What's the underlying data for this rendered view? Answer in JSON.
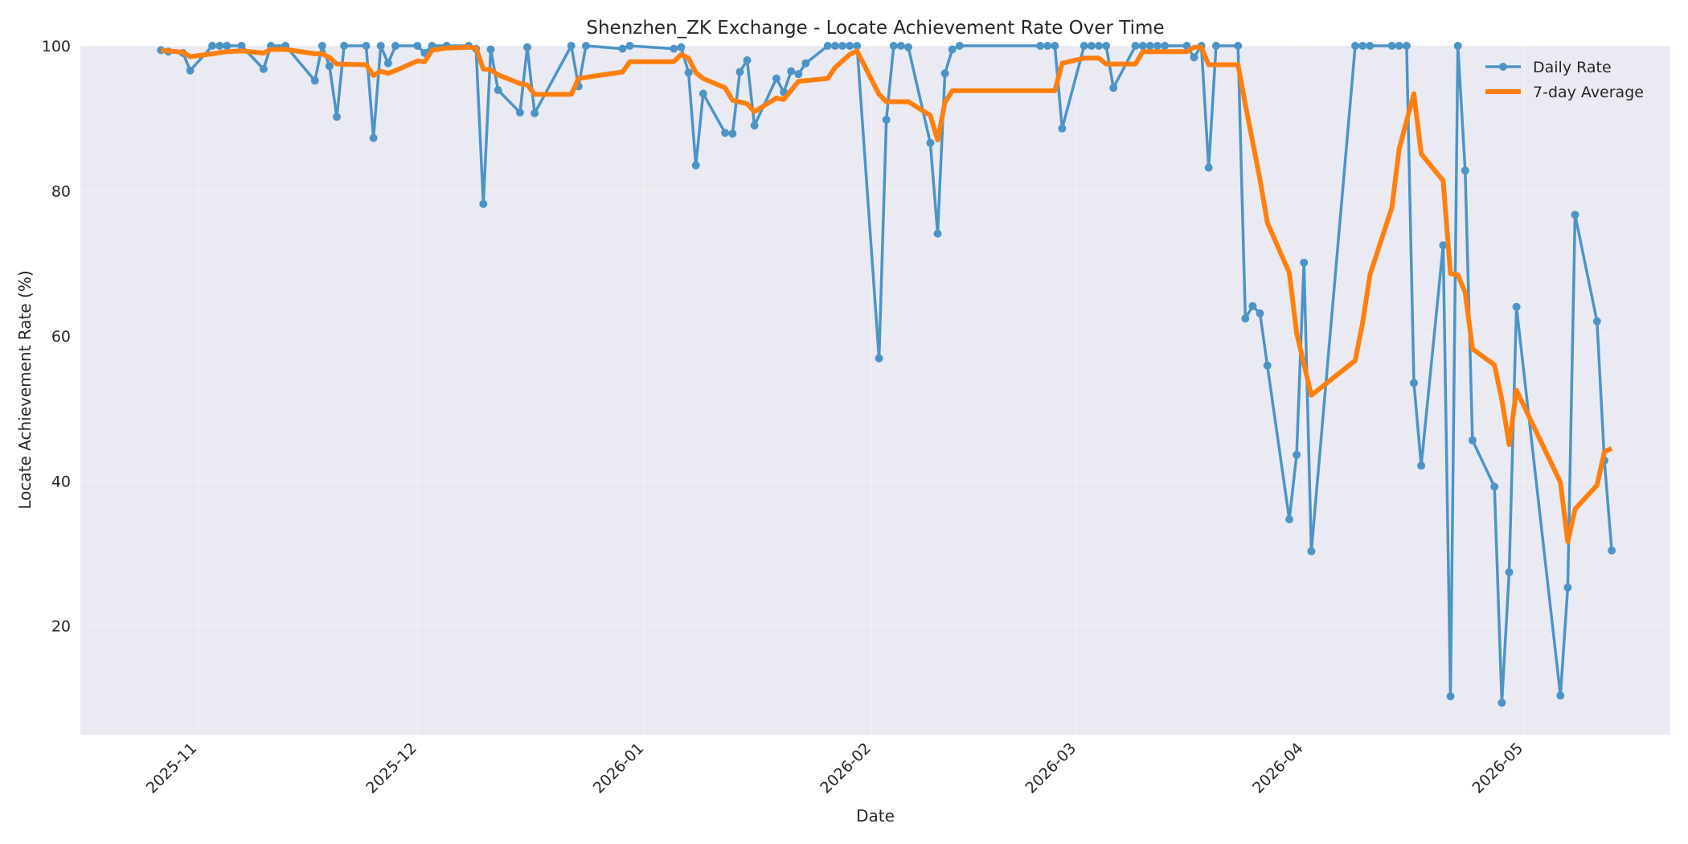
{
  "chart_data": {
    "type": "line",
    "title": "Shenzhen_ZK Exchange - Locate Achievement Rate Over Time",
    "xlabel": "Date",
    "ylabel": "Locate Achievement Rate (%)",
    "xlim": [
      "2025-10-16",
      "2026-05-21"
    ],
    "ylim": [
      5,
      100
    ],
    "y_ticks": [
      20,
      40,
      60,
      80,
      100
    ],
    "x_ticks": [
      "2025-11-01",
      "2025-12-01",
      "2026-01-01",
      "2026-02-01",
      "2026-03-01",
      "2026-04-01",
      "2026-05-01"
    ],
    "x_tick_labels": [
      "2025-11",
      "2025-12",
      "2026-01",
      "2026-02",
      "2026-03",
      "2026-04",
      "2026-05"
    ],
    "grid": true,
    "legend_position": "top-right",
    "colors": {
      "daily": "#4c94c6",
      "average": "#ff7f0e",
      "plot_bg": "#eaeaf2"
    },
    "series": [
      {
        "name": "Daily Rate",
        "style": "line-markers",
        "points": [
          [
            "2025-10-27",
            99.4
          ],
          [
            "2025-10-28",
            99.2
          ],
          [
            "2025-10-30",
            99.0
          ],
          [
            "2025-10-31",
            96.6
          ],
          [
            "2025-11-03",
            100
          ],
          [
            "2025-11-04",
            100
          ],
          [
            "2025-11-05",
            100
          ],
          [
            "2025-11-07",
            100
          ],
          [
            "2025-11-10",
            96.8
          ],
          [
            "2025-11-11",
            100
          ],
          [
            "2025-11-13",
            100
          ],
          [
            "2025-11-17",
            95.2
          ],
          [
            "2025-11-18",
            100
          ],
          [
            "2025-11-19",
            97.2
          ],
          [
            "2025-11-20",
            90.2
          ],
          [
            "2025-11-21",
            100
          ],
          [
            "2025-11-24",
            100
          ],
          [
            "2025-11-25",
            87.3
          ],
          [
            "2025-11-26",
            100
          ],
          [
            "2025-11-27",
            97.6
          ],
          [
            "2025-11-28",
            100
          ],
          [
            "2025-12-01",
            100
          ],
          [
            "2025-12-02",
            99.0
          ],
          [
            "2025-12-03",
            100
          ],
          [
            "2025-12-05",
            100
          ],
          [
            "2025-12-08",
            100
          ],
          [
            "2025-12-09",
            99.6
          ],
          [
            "2025-12-10",
            78.2
          ],
          [
            "2025-12-11",
            99.5
          ],
          [
            "2025-12-12",
            93.9
          ],
          [
            "2025-12-15",
            90.8
          ],
          [
            "2025-12-16",
            99.8
          ],
          [
            "2025-12-17",
            90.7
          ],
          [
            "2025-12-22",
            100
          ],
          [
            "2025-12-23",
            94.4
          ],
          [
            "2025-12-24",
            100
          ],
          [
            "2025-12-29",
            99.6
          ],
          [
            "2025-12-30",
            100
          ],
          [
            "2026-01-05",
            99.6
          ],
          [
            "2026-01-06",
            99.8
          ],
          [
            "2026-01-07",
            96.3
          ],
          [
            "2026-01-08",
            83.5
          ],
          [
            "2026-01-09",
            93.4
          ],
          [
            "2026-01-12",
            88.0
          ],
          [
            "2026-01-13",
            87.9
          ],
          [
            "2026-01-14",
            96.4
          ],
          [
            "2026-01-15",
            98.0
          ],
          [
            "2026-01-16",
            89.0
          ],
          [
            "2026-01-19",
            95.5
          ],
          [
            "2026-01-20",
            93.6
          ],
          [
            "2026-01-21",
            96.5
          ],
          [
            "2026-01-22",
            96.1
          ],
          [
            "2026-01-23",
            97.6
          ],
          [
            "2026-01-26",
            100
          ],
          [
            "2026-01-27",
            100
          ],
          [
            "2026-01-28",
            100
          ],
          [
            "2026-01-29",
            100
          ],
          [
            "2026-01-30",
            100
          ],
          [
            "2026-02-02",
            56.9
          ],
          [
            "2026-02-03",
            89.8
          ],
          [
            "2026-02-04",
            100
          ],
          [
            "2026-02-05",
            100
          ],
          [
            "2026-02-06",
            99.8
          ],
          [
            "2026-02-09",
            86.6
          ],
          [
            "2026-02-10",
            74.1
          ],
          [
            "2026-02-11",
            96.2
          ],
          [
            "2026-02-12",
            99.5
          ],
          [
            "2026-02-13",
            100
          ],
          [
            "2026-02-24",
            100
          ],
          [
            "2026-02-25",
            100
          ],
          [
            "2026-02-26",
            100
          ],
          [
            "2026-02-27",
            88.6
          ],
          [
            "2026-03-02",
            100
          ],
          [
            "2026-03-03",
            100
          ],
          [
            "2026-03-04",
            100
          ],
          [
            "2026-03-05",
            100
          ],
          [
            "2026-03-06",
            94.2
          ],
          [
            "2026-03-09",
            100
          ],
          [
            "2026-03-10",
            100
          ],
          [
            "2026-03-11",
            100
          ],
          [
            "2026-03-12",
            100
          ],
          [
            "2026-03-13",
            100
          ],
          [
            "2026-03-16",
            100
          ],
          [
            "2026-03-17",
            98.4
          ],
          [
            "2026-03-18",
            100
          ],
          [
            "2026-03-19",
            83.2
          ],
          [
            "2026-03-20",
            100
          ],
          [
            "2026-03-23",
            100
          ],
          [
            "2026-03-24",
            62.4
          ],
          [
            "2026-03-25",
            64.1
          ],
          [
            "2026-03-26",
            63.1
          ],
          [
            "2026-03-27",
            55.9
          ],
          [
            "2026-03-30",
            34.7
          ],
          [
            "2026-03-31",
            43.6
          ],
          [
            "2026-04-01",
            70.1
          ],
          [
            "2026-04-02",
            30.3
          ],
          [
            "2026-04-08",
            100
          ],
          [
            "2026-04-09",
            100
          ],
          [
            "2026-04-10",
            100
          ],
          [
            "2026-04-13",
            100
          ],
          [
            "2026-04-14",
            100
          ],
          [
            "2026-04-15",
            100
          ],
          [
            "2026-04-16",
            53.5
          ],
          [
            "2026-04-17",
            42.1
          ],
          [
            "2026-04-20",
            72.5
          ],
          [
            "2026-04-21",
            10.3
          ],
          [
            "2026-04-22",
            100
          ],
          [
            "2026-04-23",
            82.8
          ],
          [
            "2026-04-24",
            45.6
          ],
          [
            "2026-04-27",
            39.2
          ],
          [
            "2026-04-28",
            9.4
          ],
          [
            "2026-04-29",
            27.4
          ],
          [
            "2026-04-30",
            64.0
          ],
          [
            "2026-05-06",
            10.4
          ],
          [
            "2026-05-07",
            25.3
          ],
          [
            "2026-05-08",
            76.7
          ],
          [
            "2026-05-11",
            62.0
          ],
          [
            "2026-05-12",
            42.8
          ],
          [
            "2026-05-13",
            30.4
          ]
        ]
      },
      {
        "name": "7-day Average",
        "style": "thick-line",
        "points": [
          [
            "2025-10-27",
            99.4
          ],
          [
            "2025-10-29",
            99.2
          ],
          [
            "2025-10-30",
            99.1
          ],
          [
            "2025-10-31",
            98.5
          ],
          [
            "2025-11-03",
            98.9
          ],
          [
            "2025-11-05",
            99.2
          ],
          [
            "2025-11-07",
            99.3
          ],
          [
            "2025-11-10",
            99.0
          ],
          [
            "2025-11-11",
            99.5
          ],
          [
            "2025-11-13",
            99.5
          ],
          [
            "2025-11-17",
            98.9
          ],
          [
            "2025-11-18",
            98.9
          ],
          [
            "2025-11-19",
            98.4
          ],
          [
            "2025-11-20",
            97.5
          ],
          [
            "2025-11-24",
            97.4
          ],
          [
            "2025-11-25",
            95.9
          ],
          [
            "2025-11-26",
            96.5
          ],
          [
            "2025-11-27",
            96.2
          ],
          [
            "2025-11-28",
            96.6
          ],
          [
            "2025-12-01",
            97.9
          ],
          [
            "2025-12-02",
            97.8
          ],
          [
            "2025-12-03",
            99.4
          ],
          [
            "2025-12-05",
            99.7
          ],
          [
            "2025-12-08",
            99.8
          ],
          [
            "2025-12-09",
            99.7
          ],
          [
            "2025-12-10",
            96.8
          ],
          [
            "2025-12-11",
            96.7
          ],
          [
            "2025-12-12",
            96.0
          ],
          [
            "2025-12-15",
            94.8
          ],
          [
            "2025-12-16",
            94.6
          ],
          [
            "2025-12-17",
            93.3
          ],
          [
            "2025-12-22",
            93.3
          ],
          [
            "2025-12-23",
            95.5
          ],
          [
            "2025-12-29",
            96.4
          ],
          [
            "2025-12-30",
            97.8
          ],
          [
            "2026-01-05",
            97.8
          ],
          [
            "2026-01-06",
            98.8
          ],
          [
            "2026-01-07",
            98.3
          ],
          [
            "2026-01-08",
            96.3
          ],
          [
            "2026-01-09",
            95.5
          ],
          [
            "2026-01-12",
            94.2
          ],
          [
            "2026-01-13",
            92.5
          ],
          [
            "2026-01-15",
            92.0
          ],
          [
            "2026-01-16",
            90.9
          ],
          [
            "2026-01-19",
            92.8
          ],
          [
            "2026-01-20",
            92.6
          ],
          [
            "2026-01-22",
            95.1
          ],
          [
            "2026-01-26",
            95.5
          ],
          [
            "2026-01-27",
            97.0
          ],
          [
            "2026-01-29",
            98.8
          ],
          [
            "2026-01-30",
            99.3
          ],
          [
            "2026-02-02",
            93.3
          ],
          [
            "2026-02-03",
            92.3
          ],
          [
            "2026-02-06",
            92.3
          ],
          [
            "2026-02-09",
            90.4
          ],
          [
            "2026-02-10",
            87.0
          ],
          [
            "2026-02-11",
            92.2
          ],
          [
            "2026-02-12",
            93.8
          ],
          [
            "2026-02-13",
            93.8
          ],
          [
            "2026-02-26",
            93.8
          ],
          [
            "2026-02-27",
            97.6
          ],
          [
            "2026-03-02",
            98.3
          ],
          [
            "2026-03-04",
            98.3
          ],
          [
            "2026-03-05",
            97.5
          ],
          [
            "2026-03-09",
            97.5
          ],
          [
            "2026-03-10",
            99.2
          ],
          [
            "2026-03-16",
            99.2
          ],
          [
            "2026-03-17",
            99.8
          ],
          [
            "2026-03-18",
            99.8
          ],
          [
            "2026-03-19",
            97.4
          ],
          [
            "2026-03-23",
            97.4
          ],
          [
            "2026-03-24",
            91.9
          ],
          [
            "2026-03-26",
            81.6
          ],
          [
            "2026-03-27",
            75.6
          ],
          [
            "2026-03-30",
            68.7
          ],
          [
            "2026-03-31",
            60.4
          ],
          [
            "2026-04-02",
            51.8
          ],
          [
            "2026-04-08",
            56.6
          ],
          [
            "2026-04-09",
            61.8
          ],
          [
            "2026-04-10",
            68.4
          ],
          [
            "2026-04-13",
            77.7
          ],
          [
            "2026-04-14",
            85.8
          ],
          [
            "2026-04-16",
            93.4
          ],
          [
            "2026-04-17",
            85.1
          ],
          [
            "2026-04-20",
            81.4
          ],
          [
            "2026-04-21",
            68.6
          ],
          [
            "2026-04-22",
            68.4
          ],
          [
            "2026-04-23",
            66.0
          ],
          [
            "2026-04-24",
            58.2
          ],
          [
            "2026-04-27",
            56.0
          ],
          [
            "2026-04-28",
            51.2
          ],
          [
            "2026-04-29",
            45.0
          ],
          [
            "2026-04-30",
            52.5
          ],
          [
            "2026-05-06",
            39.8
          ],
          [
            "2026-05-07",
            31.6
          ],
          [
            "2026-05-08",
            36.1
          ],
          [
            "2026-05-11",
            39.4
          ],
          [
            "2026-05-12",
            44.0
          ],
          [
            "2026-05-13",
            44.5
          ]
        ]
      }
    ]
  }
}
